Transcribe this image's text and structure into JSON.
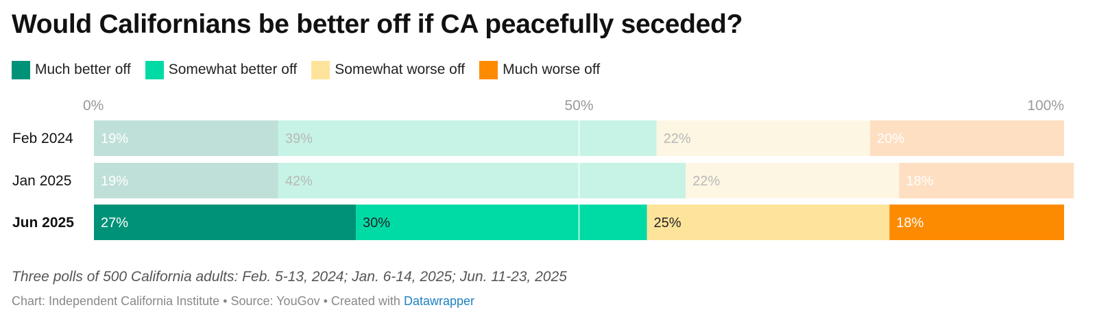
{
  "title": "Would Californians be better off if CA peacefully seceded?",
  "legend": [
    {
      "label": "Much better off",
      "color": "#009278"
    },
    {
      "label": "Somewhat better off",
      "color": "#00dba6"
    },
    {
      "label": "Somewhat worse off",
      "color": "#fee39b"
    },
    {
      "label": "Much worse off",
      "color": "#fd8b02"
    }
  ],
  "chart_data": {
    "type": "bar",
    "stacked": true,
    "orientation": "horizontal",
    "categories": [
      "Feb 2024",
      "Jan 2025",
      "Jun 2025"
    ],
    "highlighted_category": "Jun 2025",
    "series": [
      {
        "name": "Much better off",
        "values": [
          19,
          19,
          27
        ],
        "labels": [
          "19%",
          "19%",
          "27%"
        ],
        "color": "#009278",
        "faded_color": "#bfe0d8"
      },
      {
        "name": "Somewhat better off",
        "values": [
          39,
          42,
          30
        ],
        "labels": [
          "39%",
          "42%",
          "30%"
        ],
        "color": "#00dba6",
        "faded_color": "#c6f3e5"
      },
      {
        "name": "Somewhat worse off",
        "values": [
          22,
          22,
          25
        ],
        "labels": [
          "22%",
          "22%",
          "25%"
        ],
        "color": "#fee39b",
        "faded_color": "#fdf6e3"
      },
      {
        "name": "Much worse off",
        "values": [
          20,
          18,
          18
        ],
        "labels": [
          "20%",
          "18%",
          "18%"
        ],
        "color": "#fd8b02",
        "faded_color": "#fedfc2"
      }
    ],
    "xlim": [
      0,
      100
    ],
    "x_ticks": [
      {
        "value": 0,
        "label": "0%"
      },
      {
        "value": 50,
        "label": "50%"
      },
      {
        "value": 100,
        "label": "100%"
      }
    ],
    "grid": true,
    "legend_position": "top-left"
  },
  "notes": "Three polls of 500 California adults: Feb. 5-13, 2024; Jan. 6-14, 2025; Jun. 11-23, 2025",
  "byline": {
    "prefix": "Chart: Independent California Institute • Source: YouGov • Created with ",
    "link_text": "Datawrapper"
  }
}
